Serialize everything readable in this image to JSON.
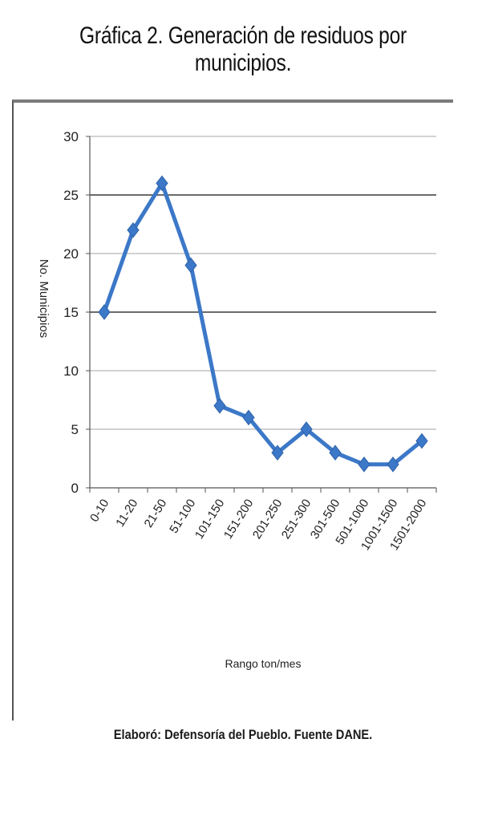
{
  "chart_data": {
    "type": "line",
    "title": "Gráfica 2.  Generación de residuos por municipios.",
    "xlabel": "Rango ton/mes",
    "ylabel": "No. Municipios",
    "categories": [
      "0-10",
      "11-20",
      "21-50",
      "51-100",
      "101-150",
      "151-200",
      "201-250",
      "251-300",
      "301-500",
      "501-1000",
      "1001-1500",
      "1501-2000"
    ],
    "series": [
      {
        "values": [
          15,
          22,
          26,
          19,
          7,
          6,
          3,
          5,
          3,
          2,
          2,
          4
        ]
      }
    ],
    "ylim": [
      0,
      30
    ],
    "yticks": [
      0,
      5,
      10,
      15,
      20,
      25,
      30
    ],
    "grid": true,
    "legend": "none",
    "line_color": "#3c78c8",
    "grid_color": "#b8b8b8",
    "grid_color_dark": "#3a3a3a"
  },
  "source_note": "Elaboró: Defensoría del Pueblo. Fuente DANE."
}
